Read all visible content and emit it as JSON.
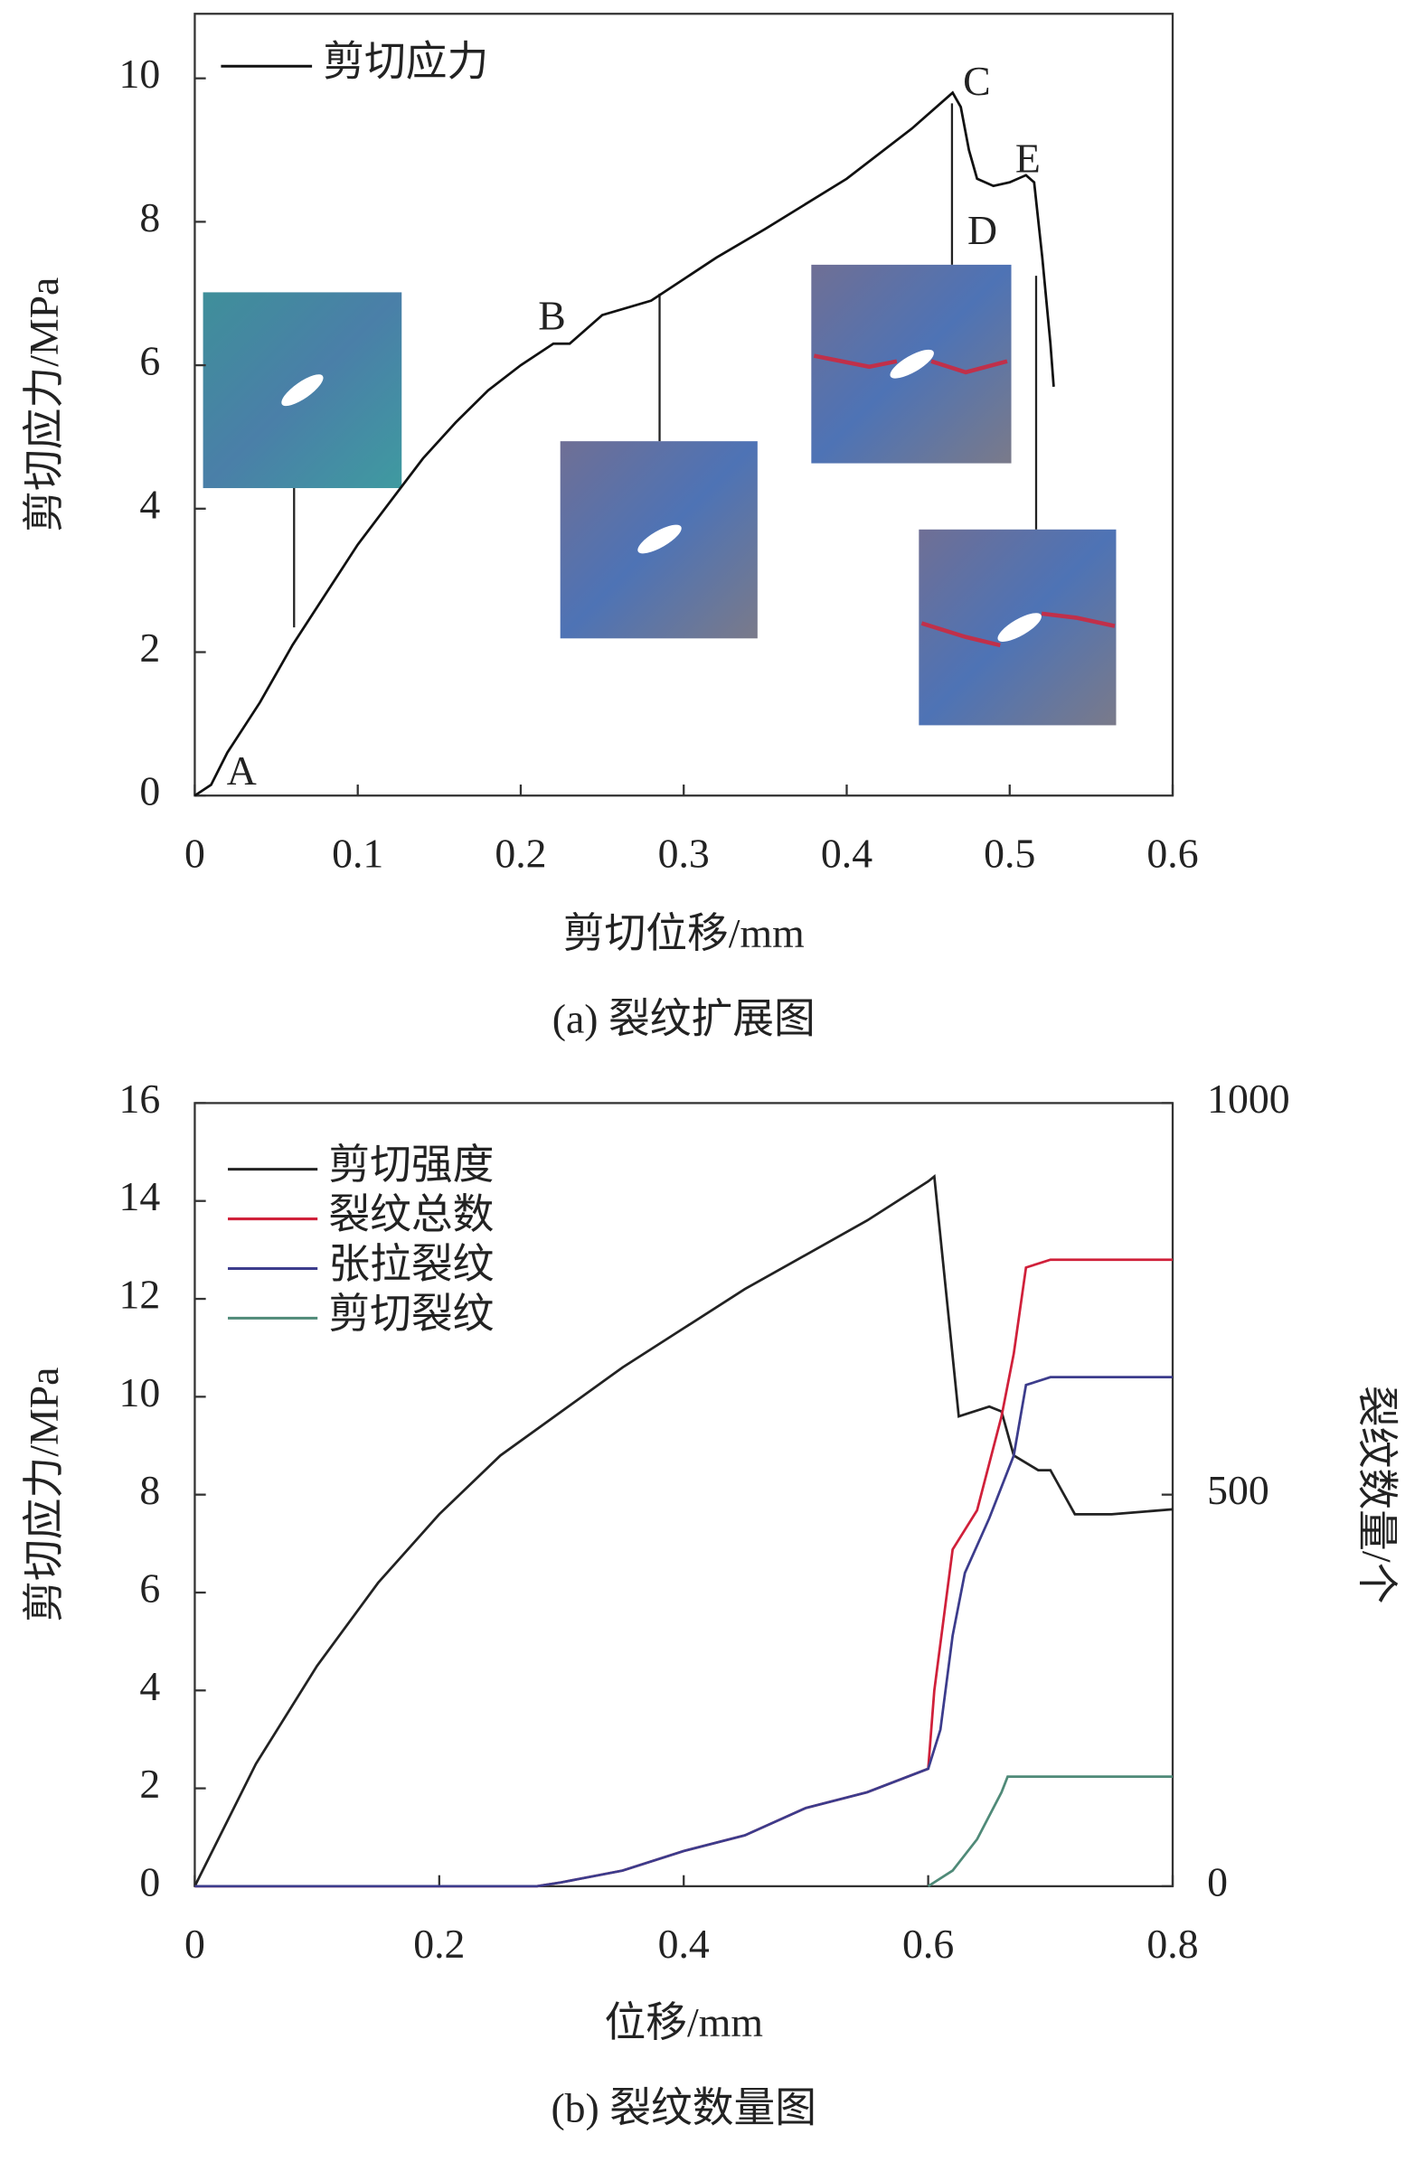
{
  "chart_data": [
    {
      "type": "line",
      "caption": "(a) 裂纹扩展图",
      "xlabel": "剪切位移/mm",
      "ylabel": "剪切应力/MPa",
      "xlim": [
        0,
        0.6
      ],
      "xticks": [
        0,
        0.1,
        0.2,
        0.3,
        0.4,
        0.5,
        0.6
      ],
      "ylim": [
        0,
        10.9
      ],
      "yticks": [
        0,
        2,
        4,
        6,
        8,
        10
      ],
      "annotations": [
        "A",
        "B",
        "C",
        "D",
        "E"
      ],
      "series": [
        {
          "name": "剪切应力",
          "color": "#111111",
          "x": [
            0,
            0.01,
            0.02,
            0.04,
            0.06,
            0.08,
            0.1,
            0.12,
            0.14,
            0.16,
            0.18,
            0.2,
            0.22,
            0.23,
            0.25,
            0.28,
            0.3,
            0.32,
            0.35,
            0.4,
            0.44,
            0.465,
            0.47,
            0.475,
            0.48,
            0.49,
            0.5,
            0.51,
            0.515,
            0.52,
            0.525,
            0.527
          ],
          "values": [
            0,
            0.15,
            0.6,
            1.3,
            2.1,
            2.8,
            3.5,
            4.1,
            4.7,
            5.2,
            5.65,
            6.0,
            6.3,
            6.3,
            6.7,
            6.9,
            7.2,
            7.5,
            7.9,
            8.6,
            9.3,
            9.8,
            9.6,
            9.0,
            8.6,
            8.5,
            8.55,
            8.65,
            8.55,
            7.5,
            6.3,
            5.7
          ]
        }
      ]
    },
    {
      "type": "line",
      "caption": "(b) 裂纹数量图",
      "xlabel": "位移/mm",
      "ylabel": "剪切应力/MPa",
      "y2label": "裂纹数量/个",
      "xlim": [
        0,
        0.8
      ],
      "xticks": [
        0,
        0.2,
        0.4,
        0.6,
        0.8
      ],
      "ylim": [
        0,
        16
      ],
      "yticks": [
        0,
        2,
        4,
        6,
        8,
        10,
        12,
        14,
        16
      ],
      "y2lim": [
        0,
        1000
      ],
      "y2ticks": [
        0,
        500,
        1000
      ],
      "series": [
        {
          "name": "剪切强度",
          "color": "#222222",
          "x": [
            0,
            0.05,
            0.1,
            0.15,
            0.2,
            0.25,
            0.3,
            0.35,
            0.4,
            0.45,
            0.5,
            0.55,
            0.6,
            0.605,
            0.625,
            0.65,
            0.66,
            0.67,
            0.69,
            0.7,
            0.72,
            0.75,
            0.8
          ],
          "values": [
            0,
            2.5,
            4.5,
            6.2,
            7.6,
            8.8,
            9.7,
            10.6,
            11.4,
            12.2,
            12.9,
            13.6,
            14.4,
            14.5,
            9.6,
            9.8,
            9.7,
            8.8,
            8.5,
            8.5,
            7.6,
            7.6,
            7.7
          ]
        },
        {
          "name": "裂纹总数",
          "color": "#d0203a",
          "axis": "y2",
          "x": [
            0,
            0.28,
            0.3,
            0.35,
            0.4,
            0.45,
            0.5,
            0.55,
            0.6,
            0.605,
            0.62,
            0.64,
            0.66,
            0.67,
            0.68,
            0.7,
            0.8
          ],
          "values": [
            0,
            0,
            5,
            20,
            45,
            65,
            100,
            120,
            150,
            250,
            430,
            480,
            600,
            680,
            790,
            800,
            800
          ]
        },
        {
          "name": "张拉裂纹",
          "color": "#3c3c8c",
          "axis": "y2",
          "x": [
            0,
            0.28,
            0.3,
            0.35,
            0.4,
            0.45,
            0.5,
            0.55,
            0.6,
            0.61,
            0.62,
            0.63,
            0.65,
            0.67,
            0.68,
            0.7,
            0.8
          ],
          "values": [
            0,
            0,
            5,
            20,
            45,
            65,
            100,
            120,
            150,
            200,
            320,
            400,
            470,
            550,
            640,
            650,
            650
          ]
        },
        {
          "name": "剪切裂纹",
          "color": "#4f8a78",
          "axis": "y2",
          "x": [
            0.6,
            0.62,
            0.64,
            0.66,
            0.665,
            0.7,
            0.8
          ],
          "values": [
            0,
            20,
            60,
            120,
            140,
            140,
            140
          ]
        }
      ]
    }
  ]
}
